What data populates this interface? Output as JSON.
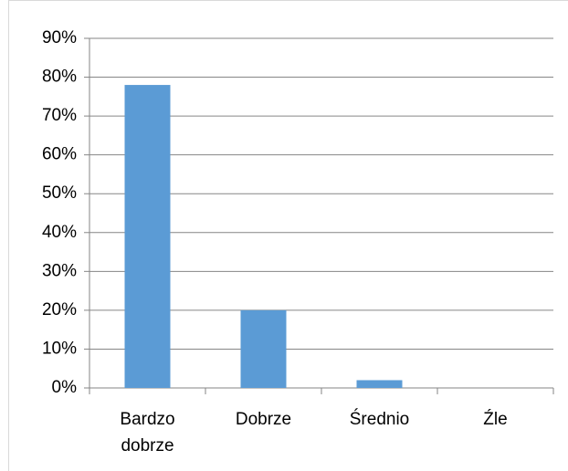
{
  "chart_data": {
    "type": "bar",
    "categories": [
      "Bardzo dobrze",
      "Dobrze",
      "Średnio",
      "Źle"
    ],
    "values": [
      78,
      20,
      2,
      0
    ],
    "color": "#5b9bd5",
    "ylim": [
      0,
      90
    ],
    "yticks": [
      {
        "value": 0,
        "label": "0%"
      },
      {
        "value": 10,
        "label": "10%"
      },
      {
        "value": 20,
        "label": "20%"
      },
      {
        "value": 30,
        "label": "30%"
      },
      {
        "value": 40,
        "label": "40%"
      },
      {
        "value": 50,
        "label": "50%"
      },
      {
        "value": 60,
        "label": "60%"
      },
      {
        "value": 70,
        "label": "70%"
      },
      {
        "value": 80,
        "label": "80%"
      },
      {
        "value": 90,
        "label": "90%"
      }
    ],
    "grid": true
  }
}
